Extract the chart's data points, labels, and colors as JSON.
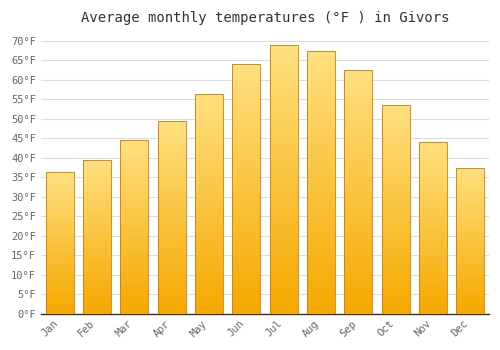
{
  "title": "Average monthly temperatures (°F ) in Givors",
  "months": [
    "Jan",
    "Feb",
    "Mar",
    "Apr",
    "May",
    "Jun",
    "Jul",
    "Aug",
    "Sep",
    "Oct",
    "Nov",
    "Dec"
  ],
  "values": [
    36.5,
    39.5,
    44.5,
    49.5,
    56.5,
    64.0,
    69.0,
    67.5,
    62.5,
    53.5,
    44.0,
    37.5
  ],
  "bar_color_bottom": "#F5A800",
  "bar_color_top": "#FFE080",
  "bar_edge_color": "#C88000",
  "background_color": "#FFFFFF",
  "grid_color": "#DDDDDD",
  "title_fontsize": 10,
  "tick_fontsize": 7.5,
  "ylim": [
    0,
    72
  ],
  "ytick_step": 5
}
